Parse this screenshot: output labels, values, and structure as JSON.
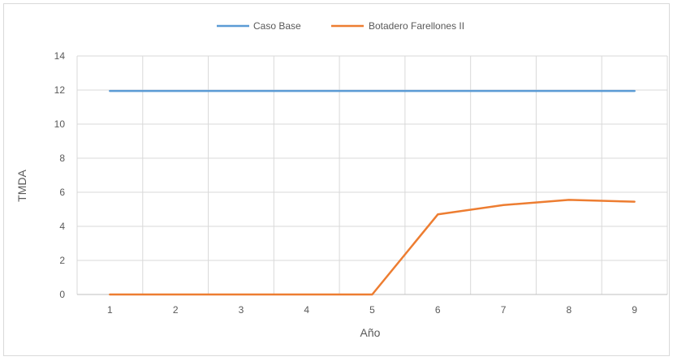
{
  "chart_data": {
    "type": "line",
    "title": "",
    "xlabel": "Año",
    "ylabel": "TMDA",
    "x": [
      1,
      2,
      3,
      4,
      5,
      6,
      7,
      8,
      9
    ],
    "ylim": [
      0,
      14
    ],
    "yticks": [
      0,
      2,
      4,
      6,
      8,
      10,
      12,
      14
    ],
    "grid": true,
    "legend_position": "top",
    "series": [
      {
        "name": "Caso Base",
        "color": "#5b9bd5",
        "values": [
          11.95,
          11.95,
          11.95,
          11.95,
          11.95,
          11.95,
          11.95,
          11.95,
          11.95
        ]
      },
      {
        "name": "Botadero Farellones II",
        "color": "#ed7d31",
        "values": [
          0,
          0,
          0,
          0,
          0,
          4.7,
          5.25,
          5.55,
          5.45
        ]
      }
    ]
  }
}
